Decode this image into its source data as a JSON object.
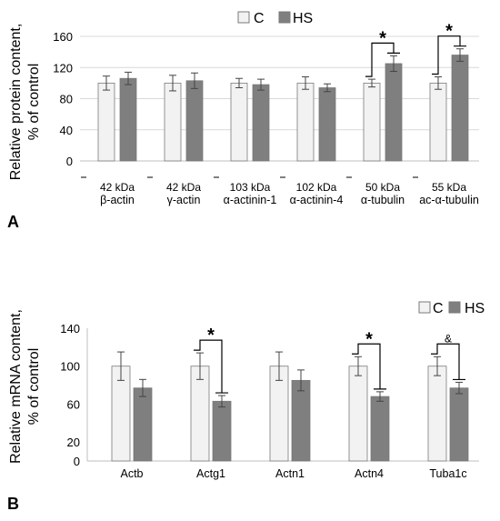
{
  "colors": {
    "C": "#f2f2f2",
    "HS": "#7f7f7f",
    "grid": "#d9d9d9",
    "axis": "#bfbfbf",
    "bar_edge": "#7a7a7a"
  },
  "chart_data": [
    {
      "type": "bar",
      "panel_label": "A",
      "ylabel_line1": "Relative protein content,",
      "ylabel_line2": "% of control",
      "ylim": [
        0,
        160
      ],
      "yticks": [
        "0",
        "40",
        "80",
        "120",
        "160"
      ],
      "ytick_values": [
        0,
        40,
        80,
        120,
        160
      ],
      "grid": true,
      "legend_position": "top-center",
      "legend": [
        "C",
        "HS"
      ],
      "categories_line1": [
        "42 kDa",
        "42 kDa",
        "103 kDa",
        "102 kDa",
        "50 kDa",
        "55 kDa"
      ],
      "categories_line2": [
        "β-actin",
        "γ-actin",
        "α-actinin-1",
        "α-actinin-4",
        "α-tubulin",
        "ac-α-tubulin"
      ],
      "series": [
        {
          "name": "C",
          "values": [
            100,
            100,
            100,
            100,
            100,
            100
          ],
          "errors": [
            9,
            10,
            6,
            8,
            5,
            8
          ]
        },
        {
          "name": "HS",
          "values": [
            106,
            103,
            98,
            94,
            125,
            136
          ],
          "errors": [
            8,
            10,
            7,
            5,
            10,
            8
          ]
        }
      ],
      "significance": [
        {
          "category_index": 4,
          "symbol": "*"
        },
        {
          "category_index": 5,
          "symbol": "*"
        }
      ]
    },
    {
      "type": "bar",
      "panel_label": "B",
      "ylabel_line1": "Relative mRNA content,",
      "ylabel_line2": "% of control",
      "ylim": [
        0,
        140
      ],
      "yticks": [
        "0",
        "20",
        "60",
        "100",
        "140"
      ],
      "ytick_values": [
        0,
        20,
        60,
        100,
        140
      ],
      "grid": false,
      "legend_position": "top-right",
      "legend": [
        "C",
        "HS"
      ],
      "categories": [
        "Actb",
        "Actg1",
        "Actn1",
        "Actn4",
        "Tuba1c"
      ],
      "series": [
        {
          "name": "C",
          "values": [
            100,
            100,
            100,
            100,
            100
          ],
          "errors": [
            15,
            14,
            15,
            10,
            10
          ]
        },
        {
          "name": "HS",
          "values": [
            77,
            63,
            85,
            68,
            77
          ],
          "errors": [
            9,
            6,
            11,
            5,
            6
          ]
        }
      ],
      "significance": [
        {
          "category_index": 1,
          "symbol": "*"
        },
        {
          "category_index": 3,
          "symbol": "*"
        },
        {
          "category_index": 4,
          "symbol": "&"
        }
      ]
    }
  ]
}
